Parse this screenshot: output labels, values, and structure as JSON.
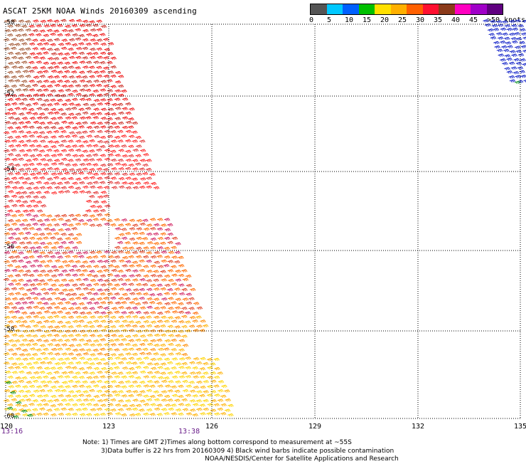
{
  "title": "ASCAT 25KM NOAA Winds 20160309 ascending",
  "legend": {
    "colors": [
      "#555555",
      "#00c8ff",
      "#0060ff",
      "#00c000",
      "#ffe000",
      "#ffb000",
      "#ff6000",
      "#ff1030",
      "#8b3a1a",
      "#ff00c0",
      "#a000c8",
      "#600080"
    ],
    "labels": [
      "0",
      "5",
      "10",
      "15",
      "20",
      "25",
      "30",
      "35",
      "40",
      "45",
      ">50 knots"
    ]
  },
  "map": {
    "x_ticks": [
      "120",
      "123",
      "126",
      "129",
      "132",
      "135"
    ],
    "y_ticks": [
      "-50",
      "-52",
      "-54",
      "-56",
      "-58",
      "-60"
    ],
    "times": [
      "13:16",
      "13:38"
    ]
  },
  "notes": {
    "line1": "Note: 1) Times are GMT 2)Times along bottom correspond to measurement at ~55S",
    "line2": "3)Data buffer is 22 hrs from 20160309 4) Black wind barbs indicate possible contamination",
    "line3": "NOAA/NESDIS/Center for Satellite Applications and Research"
  }
}
